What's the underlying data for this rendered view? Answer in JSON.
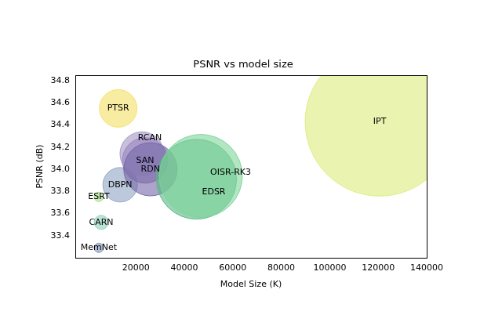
{
  "chart_data": {
    "type": "bubble",
    "title": "PSNR vs model size",
    "x_label": "Model Size (K)",
    "y_label": "PSNR (dB)",
    "series": [
      {
        "name": "IPT",
        "color": "#dcec7c",
        "x": 120600,
        "y": 34.43,
        "size": 95
      },
      {
        "name": "OISR-RK3",
        "color": "#7fd49a",
        "x": 46800,
        "y": 33.94,
        "size": 53
      },
      {
        "name": "EDSR",
        "color": "#55b884",
        "x": 45000,
        "y": 33.91,
        "size": 51
      },
      {
        "name": "RDN",
        "color": "#7468a6",
        "x": 26000,
        "y": 34.0,
        "size": 34
      },
      {
        "name": "RCAN",
        "color": "#a494c6",
        "x": 22500,
        "y": 34.14,
        "size": 28
      },
      {
        "name": "SAN",
        "color": "#8670ae",
        "x": 23800,
        "y": 34.08,
        "size": 29
      },
      {
        "name": "DBPN",
        "color": "#8fa4c4",
        "x": 13500,
        "y": 33.86,
        "size": 22
      },
      {
        "name": "PTSR",
        "color": "#f4e064",
        "x": 12700,
        "y": 34.55,
        "size": 24
      },
      {
        "name": "ESRT",
        "color": "#a8e08c",
        "x": 4700,
        "y": 33.75,
        "size": 6
      },
      {
        "name": "CARN",
        "color": "#8ed2bc",
        "x": 5700,
        "y": 33.52,
        "size": 9
      },
      {
        "name": "MemNet",
        "color": "#7f94b6",
        "x": 4700,
        "y": 33.29,
        "size": 6
      }
    ],
    "xlim": [
      -5000,
      140000
    ],
    "xticks": [
      20000,
      40000,
      60000,
      80000,
      100000,
      120000,
      140000
    ],
    "ylim": [
      33.2,
      34.85
    ],
    "yticks": [
      33.4,
      33.6,
      33.8,
      {
        "value": 34,
        "label": "34.0"
      },
      34.2,
      34.4,
      34.6,
      34.8
    ],
    "grid": false
  }
}
